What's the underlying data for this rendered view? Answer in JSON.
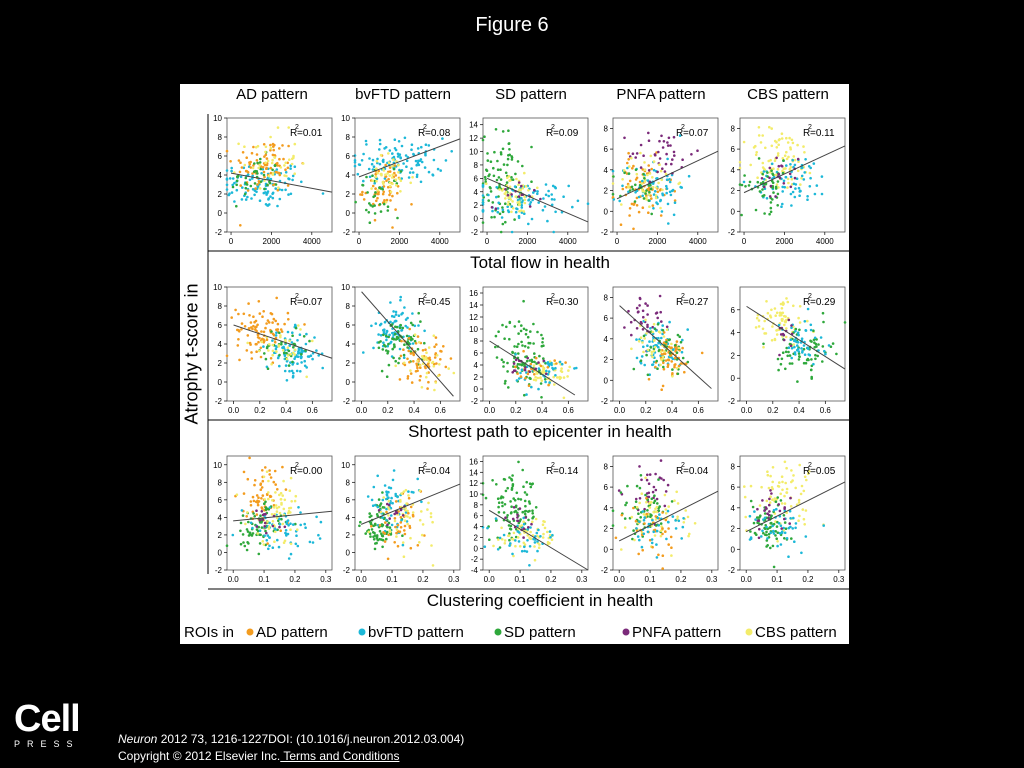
{
  "figure_title": "Figure 6",
  "y_axis_label": "Atrophy t-score in",
  "column_titles": [
    "AD pattern",
    "bvFTD pattern",
    "SD pattern",
    "PNFA pattern",
    "CBS pattern"
  ],
  "row_titles": [
    "Total flow in health",
    "Shortest path to epicenter in health",
    "Clustering coefficient in health"
  ],
  "legend": {
    "prefix": "ROIs in",
    "entries": [
      {
        "label": "AD pattern",
        "color": "#f39c1f"
      },
      {
        "label": "bvFTD pattern",
        "color": "#1cb8d8"
      },
      {
        "label": "SD pattern",
        "color": "#2ea83b"
      },
      {
        "label": "PNFA pattern",
        "color": "#7b2a7a"
      },
      {
        "label": "CBS pattern",
        "color": "#f3ec6a"
      }
    ]
  },
  "footer": {
    "logo_main": "Cell",
    "logo_sub": "PRESS",
    "journal": "Neuron",
    "citation_rest": " 2012 73, 1216-1227DOI: (10.1016/j.neuron.2012.03.004)",
    "copyright": "Copyright © 2012 Elsevier Inc.",
    "terms_link": " Terms and Conditions"
  },
  "chart_data": [
    {
      "type": "scatter",
      "row": 0,
      "col": 0,
      "annotation": "R²=0.01",
      "r2_prefix": "R",
      "r2_value": "=0.01",
      "xlim": [
        -200,
        5000
      ],
      "ylim": [
        -2,
        10
      ],
      "xticks": [
        0,
        2000,
        4000
      ],
      "yticks": [
        -2,
        0,
        2,
        4,
        6,
        8,
        10
      ],
      "fit": [
        [
          0,
          4.2
        ],
        [
          5000,
          2.2
        ]
      ],
      "clusters": [
        {
          "color": "#1cb8d8",
          "cx": 1500,
          "cy": 3,
          "sx": 1100,
          "sy": 1.3,
          "n": 110
        },
        {
          "color": "#f39c1f",
          "cx": 1700,
          "cy": 5,
          "sx": 800,
          "sy": 1.5,
          "n": 80
        },
        {
          "color": "#2ea83b",
          "cx": 1200,
          "cy": 3.5,
          "sx": 600,
          "sy": 1.2,
          "n": 35
        },
        {
          "color": "#f3ec6a",
          "cx": 1900,
          "cy": 5.5,
          "sx": 700,
          "sy": 1.5,
          "n": 40
        }
      ]
    },
    {
      "type": "scatter",
      "row": 0,
      "col": 1,
      "annotation": "R²=0.08",
      "r2_prefix": "R",
      "r2_value": "=0.08",
      "xlim": [
        -200,
        5000
      ],
      "ylim": [
        -2,
        10
      ],
      "xticks": [
        0,
        2000,
        4000
      ],
      "yticks": [
        -2,
        0,
        2,
        4,
        6,
        8,
        10
      ],
      "fit": [
        [
          0,
          3.8
        ],
        [
          5000,
          7.8
        ]
      ],
      "clusters": [
        {
          "color": "#1cb8d8",
          "cx": 2000,
          "cy": 5.5,
          "sx": 1100,
          "sy": 1.2,
          "n": 110
        },
        {
          "color": "#f39c1f",
          "cx": 1200,
          "cy": 2.5,
          "sx": 500,
          "sy": 1.4,
          "n": 60
        },
        {
          "color": "#2ea83b",
          "cx": 1000,
          "cy": 2,
          "sx": 500,
          "sy": 1.2,
          "n": 35
        },
        {
          "color": "#f3ec6a",
          "cx": 1500,
          "cy": 3.5,
          "sx": 600,
          "sy": 1.4,
          "n": 40
        }
      ]
    },
    {
      "type": "scatter",
      "row": 0,
      "col": 2,
      "annotation": "R²=0.09",
      "r2_prefix": "R",
      "r2_value": "=0.09",
      "xlim": [
        -200,
        5000
      ],
      "ylim": [
        -2,
        15
      ],
      "xticks": [
        0,
        2000,
        4000
      ],
      "yticks": [
        -2,
        0,
        2,
        4,
        6,
        8,
        10,
        12,
        14
      ],
      "fit": [
        [
          0,
          6
        ],
        [
          5000,
          -0.5
        ]
      ],
      "clusters": [
        {
          "color": "#2ea83b",
          "cx": 700,
          "cy": 6,
          "sx": 500,
          "sy": 3.5,
          "n": 90
        },
        {
          "color": "#1cb8d8",
          "cx": 1800,
          "cy": 2.5,
          "sx": 1100,
          "sy": 1.5,
          "n": 90
        },
        {
          "color": "#f3ec6a",
          "cx": 1400,
          "cy": 3.5,
          "sx": 600,
          "sy": 1.5,
          "n": 50
        },
        {
          "color": "#7b2a7a",
          "cx": 1500,
          "cy": 4,
          "sx": 600,
          "sy": 1.2,
          "n": 15
        }
      ]
    },
    {
      "type": "scatter",
      "row": 0,
      "col": 3,
      "annotation": "R²=0.07",
      "r2_prefix": "R",
      "r2_value": "=0.07",
      "xlim": [
        -200,
        5000
      ],
      "ylim": [
        -2,
        9
      ],
      "xticks": [
        0,
        2000,
        4000
      ],
      "yticks": [
        -2,
        0,
        2,
        4,
        6,
        8
      ],
      "fit": [
        [
          0,
          1.2
        ],
        [
          5000,
          5.8
        ]
      ],
      "clusters": [
        {
          "color": "#f39c1f",
          "cx": 1300,
          "cy": 2,
          "sx": 700,
          "sy": 1.5,
          "n": 70
        },
        {
          "color": "#1cb8d8",
          "cx": 1800,
          "cy": 2.5,
          "sx": 800,
          "sy": 1.4,
          "n": 70
        },
        {
          "color": "#7b2a7a",
          "cx": 2200,
          "cy": 5.5,
          "sx": 800,
          "sy": 1.2,
          "n": 40
        },
        {
          "color": "#f3ec6a",
          "cx": 1500,
          "cy": 3,
          "sx": 700,
          "sy": 1.5,
          "n": 45
        },
        {
          "color": "#2ea83b",
          "cx": 1000,
          "cy": 2,
          "sx": 500,
          "sy": 1.2,
          "n": 25
        }
      ]
    },
    {
      "type": "scatter",
      "row": 0,
      "col": 4,
      "annotation": "R²=0.11",
      "r2_prefix": "R",
      "r2_value": "=0.11",
      "xlim": [
        -200,
        5000
      ],
      "ylim": [
        -2,
        9
      ],
      "xticks": [
        0,
        2000,
        4000
      ],
      "yticks": [
        -2,
        0,
        2,
        4,
        6,
        8
      ],
      "fit": [
        [
          0,
          1.8
        ],
        [
          5000,
          6.3
        ]
      ],
      "clusters": [
        {
          "color": "#f3ec6a",
          "cx": 1800,
          "cy": 5,
          "sx": 900,
          "sy": 1.5,
          "n": 90
        },
        {
          "color": "#1cb8d8",
          "cx": 2400,
          "cy": 3,
          "sx": 900,
          "sy": 1.2,
          "n": 70
        },
        {
          "color": "#2ea83b",
          "cx": 1100,
          "cy": 2.5,
          "sx": 600,
          "sy": 1.2,
          "n": 50
        },
        {
          "color": "#7b2a7a",
          "cx": 1700,
          "cy": 3.5,
          "sx": 500,
          "sy": 1,
          "n": 20
        }
      ]
    },
    {
      "type": "scatter",
      "row": 1,
      "col": 0,
      "annotation": "R²=0.07",
      "r2_prefix": "R",
      "r2_value": "=0.07",
      "xlim": [
        -0.05,
        0.75
      ],
      "ylim": [
        -2,
        10
      ],
      "xticks": [
        0.0,
        0.2,
        0.4,
        0.6
      ],
      "yticks": [
        -2,
        0,
        2,
        4,
        6,
        8,
        10
      ],
      "fit": [
        [
          0,
          6
        ],
        [
          0.75,
          2.5
        ]
      ],
      "clusters": [
        {
          "color": "#f39c1f",
          "cx": 0.22,
          "cy": 5.5,
          "sx": 0.1,
          "sy": 1.3,
          "n": 90
        },
        {
          "color": "#1cb8d8",
          "cx": 0.45,
          "cy": 3,
          "sx": 0.1,
          "sy": 1.2,
          "n": 90
        },
        {
          "color": "#2ea83b",
          "cx": 0.4,
          "cy": 3.5,
          "sx": 0.1,
          "sy": 1.2,
          "n": 35
        },
        {
          "color": "#f3ec6a",
          "cx": 0.35,
          "cy": 4,
          "sx": 0.1,
          "sy": 1.2,
          "n": 30
        }
      ]
    },
    {
      "type": "scatter",
      "row": 1,
      "col": 1,
      "annotation": "R²=0.45",
      "r2_prefix": "R",
      "r2_value": "=0.45",
      "xlim": [
        -0.05,
        0.75
      ],
      "ylim": [
        -2,
        10
      ],
      "xticks": [
        0.0,
        0.2,
        0.4,
        0.6
      ],
      "yticks": [
        -2,
        0,
        2,
        4,
        6,
        8,
        10
      ],
      "fit": [
        [
          0,
          9.5
        ],
        [
          0.7,
          -1.5
        ]
      ],
      "clusters": [
        {
          "color": "#1cb8d8",
          "cx": 0.25,
          "cy": 5.5,
          "sx": 0.08,
          "sy": 1.3,
          "n": 80
        },
        {
          "color": "#2ea83b",
          "cx": 0.3,
          "cy": 4,
          "sx": 0.09,
          "sy": 1.3,
          "n": 70
        },
        {
          "color": "#f39c1f",
          "cx": 0.45,
          "cy": 2.5,
          "sx": 0.09,
          "sy": 1.3,
          "n": 70
        },
        {
          "color": "#f3ec6a",
          "cx": 0.5,
          "cy": 2,
          "sx": 0.08,
          "sy": 1.2,
          "n": 30
        }
      ]
    },
    {
      "type": "scatter",
      "row": 1,
      "col": 2,
      "annotation": "R²=0.30",
      "r2_prefix": "R",
      "r2_value": "=0.30",
      "xlim": [
        -0.05,
        0.75
      ],
      "ylim": [
        -2,
        17
      ],
      "xticks": [
        0.0,
        0.2,
        0.4,
        0.6
      ],
      "yticks": [
        -2,
        0,
        2,
        4,
        6,
        8,
        10,
        12,
        14,
        16
      ],
      "fit": [
        [
          0,
          8
        ],
        [
          0.65,
          -1
        ]
      ],
      "clusters": [
        {
          "color": "#2ea83b",
          "cx": 0.25,
          "cy": 6,
          "sx": 0.1,
          "sy": 3,
          "n": 100
        },
        {
          "color": "#f3ec6a",
          "cx": 0.45,
          "cy": 2.5,
          "sx": 0.09,
          "sy": 1.5,
          "n": 50
        },
        {
          "color": "#1cb8d8",
          "cx": 0.4,
          "cy": 3,
          "sx": 0.1,
          "sy": 1.5,
          "n": 40
        },
        {
          "color": "#f39c1f",
          "cx": 0.35,
          "cy": 3,
          "sx": 0.08,
          "sy": 1.2,
          "n": 20
        },
        {
          "color": "#7b2a7a",
          "cx": 0.3,
          "cy": 4,
          "sx": 0.08,
          "sy": 1.2,
          "n": 15
        }
      ]
    },
    {
      "type": "scatter",
      "row": 1,
      "col": 3,
      "annotation": "R²=0.27",
      "r2_prefix": "R",
      "r2_value": "=0.27",
      "xlim": [
        -0.05,
        0.75
      ],
      "ylim": [
        -2,
        9
      ],
      "xticks": [
        0.0,
        0.2,
        0.4,
        0.6
      ],
      "yticks": [
        -2,
        0,
        2,
        4,
        6,
        8
      ],
      "fit": [
        [
          0,
          7.2
        ],
        [
          0.7,
          -0.8
        ]
      ],
      "clusters": [
        {
          "color": "#7b2a7a",
          "cx": 0.2,
          "cy": 6,
          "sx": 0.07,
          "sy": 1.1,
          "n": 35
        },
        {
          "color": "#1cb8d8",
          "cx": 0.3,
          "cy": 3.5,
          "sx": 0.09,
          "sy": 1.2,
          "n": 70
        },
        {
          "color": "#f39c1f",
          "cx": 0.38,
          "cy": 2,
          "sx": 0.09,
          "sy": 1.1,
          "n": 60
        },
        {
          "color": "#2ea83b",
          "cx": 0.35,
          "cy": 3,
          "sx": 0.09,
          "sy": 1.1,
          "n": 40
        },
        {
          "color": "#f3ec6a",
          "cx": 0.3,
          "cy": 3.5,
          "sx": 0.09,
          "sy": 1.2,
          "n": 35
        }
      ]
    },
    {
      "type": "scatter",
      "row": 1,
      "col": 4,
      "annotation": "R²=0.29",
      "r2_prefix": "R",
      "r2_value": "=0.29",
      "xlim": [
        -0.05,
        0.75
      ],
      "ylim": [
        -2,
        8
      ],
      "xticks": [
        0.0,
        0.2,
        0.4,
        0.6
      ],
      "yticks": [
        -2,
        0,
        2,
        4,
        6
      ],
      "fit": [
        [
          0,
          6.3
        ],
        [
          0.75,
          0.8
        ]
      ],
      "clusters": [
        {
          "color": "#f3ec6a",
          "cx": 0.25,
          "cy": 5,
          "sx": 0.1,
          "sy": 1.1,
          "n": 70
        },
        {
          "color": "#2ea83b",
          "cx": 0.45,
          "cy": 2.5,
          "sx": 0.1,
          "sy": 1.1,
          "n": 70
        },
        {
          "color": "#1cb8d8",
          "cx": 0.4,
          "cy": 3,
          "sx": 0.1,
          "sy": 1.1,
          "n": 50
        },
        {
          "color": "#7b2a7a",
          "cx": 0.3,
          "cy": 3.5,
          "sx": 0.07,
          "sy": 0.8,
          "n": 12
        }
      ]
    },
    {
      "type": "scatter",
      "row": 2,
      "col": 0,
      "annotation": "R²=0.00",
      "r2_prefix": "R",
      "r2_value": "=0.00",
      "xlim": [
        -0.02,
        0.32
      ],
      "ylim": [
        -2,
        11
      ],
      "xticks": [
        0.0,
        0.1,
        0.2,
        0.3
      ],
      "yticks": [
        -2,
        0,
        2,
        4,
        6,
        8,
        10
      ],
      "fit": [
        [
          0,
          3.6
        ],
        [
          0.32,
          4.7
        ]
      ],
      "clusters": [
        {
          "color": "#f39c1f",
          "cx": 0.1,
          "cy": 6,
          "sx": 0.03,
          "sy": 2,
          "n": 70
        },
        {
          "color": "#2ea83b",
          "cx": 0.08,
          "cy": 3,
          "sx": 0.04,
          "sy": 1.3,
          "n": 70
        },
        {
          "color": "#1cb8d8",
          "cx": 0.15,
          "cy": 2.5,
          "sx": 0.06,
          "sy": 1.3,
          "n": 60
        },
        {
          "color": "#f3ec6a",
          "cx": 0.15,
          "cy": 5,
          "sx": 0.05,
          "sy": 2,
          "n": 60
        },
        {
          "color": "#7b2a7a",
          "cx": 0.1,
          "cy": 3.5,
          "sx": 0.03,
          "sy": 1,
          "n": 15
        }
      ]
    },
    {
      "type": "scatter",
      "row": 2,
      "col": 1,
      "annotation": "R²=0.04",
      "r2_prefix": "R",
      "r2_value": "=0.04",
      "xlim": [
        -0.02,
        0.32
      ],
      "ylim": [
        -2,
        11
      ],
      "xticks": [
        0.0,
        0.1,
        0.2,
        0.3
      ],
      "yticks": [
        -2,
        0,
        2,
        4,
        6,
        8,
        10
      ],
      "fit": [
        [
          0,
          3.2
        ],
        [
          0.32,
          7.8
        ]
      ],
      "clusters": [
        {
          "color": "#2ea83b",
          "cx": 0.06,
          "cy": 3,
          "sx": 0.03,
          "sy": 1.5,
          "n": 80
        },
        {
          "color": "#1cb8d8",
          "cx": 0.1,
          "cy": 5.5,
          "sx": 0.04,
          "sy": 1.5,
          "n": 60
        },
        {
          "color": "#f39c1f",
          "cx": 0.12,
          "cy": 3,
          "sx": 0.04,
          "sy": 1.4,
          "n": 40
        },
        {
          "color": "#f3ec6a",
          "cx": 0.15,
          "cy": 4,
          "sx": 0.05,
          "sy": 1.6,
          "n": 50
        },
        {
          "color": "#7b2a7a",
          "cx": 0.1,
          "cy": 5,
          "sx": 0.03,
          "sy": 1,
          "n": 12
        }
      ]
    },
    {
      "type": "scatter",
      "row": 2,
      "col": 2,
      "annotation": "R²=0.14",
      "r2_prefix": "R",
      "r2_value": "=0.14",
      "xlim": [
        -0.02,
        0.32
      ],
      "ylim": [
        -4,
        17
      ],
      "xticks": [
        0.0,
        0.1,
        0.2,
        0.3
      ],
      "yticks": [
        -4,
        -2,
        0,
        2,
        4,
        6,
        8,
        10,
        12,
        14,
        16
      ],
      "fit": [
        [
          0,
          7
        ],
        [
          0.32,
          -4
        ]
      ],
      "clusters": [
        {
          "color": "#2ea83b",
          "cx": 0.08,
          "cy": 7,
          "sx": 0.04,
          "sy": 3,
          "n": 100
        },
        {
          "color": "#f3ec6a",
          "cx": 0.13,
          "cy": 2,
          "sx": 0.05,
          "sy": 1.6,
          "n": 60
        },
        {
          "color": "#1cb8d8",
          "cx": 0.12,
          "cy": 2,
          "sx": 0.05,
          "sy": 1.5,
          "n": 40
        },
        {
          "color": "#7b2a7a",
          "cx": 0.1,
          "cy": 5,
          "sx": 0.03,
          "sy": 1.5,
          "n": 15
        }
      ]
    },
    {
      "type": "scatter",
      "row": 2,
      "col": 3,
      "annotation": "R²=0.04",
      "r2_prefix": "R",
      "r2_value": "=0.04",
      "xlim": [
        -0.02,
        0.32
      ],
      "ylim": [
        -2,
        9
      ],
      "xticks": [
        0.0,
        0.1,
        0.2,
        0.3
      ],
      "yticks": [
        -2,
        0,
        2,
        4,
        6,
        8
      ],
      "fit": [
        [
          0,
          0.8
        ],
        [
          0.32,
          5.6
        ]
      ],
      "clusters": [
        {
          "color": "#7b2a7a",
          "cx": 0.1,
          "cy": 5.5,
          "sx": 0.04,
          "sy": 1.2,
          "n": 35
        },
        {
          "color": "#2ea83b",
          "cx": 0.08,
          "cy": 3.5,
          "sx": 0.04,
          "sy": 1.3,
          "n": 60
        },
        {
          "color": "#f3ec6a",
          "cx": 0.13,
          "cy": 3,
          "sx": 0.05,
          "sy": 1.3,
          "n": 55
        },
        {
          "color": "#f39c1f",
          "cx": 0.1,
          "cy": 2,
          "sx": 0.04,
          "sy": 1.1,
          "n": 40
        },
        {
          "color": "#1cb8d8",
          "cx": 0.12,
          "cy": 2,
          "sx": 0.05,
          "sy": 1.2,
          "n": 35
        }
      ]
    },
    {
      "type": "scatter",
      "row": 2,
      "col": 4,
      "annotation": "R²=0.05",
      "r2_prefix": "R",
      "r2_value": "=0.05",
      "xlim": [
        -0.02,
        0.32
      ],
      "ylim": [
        -2,
        9
      ],
      "xticks": [
        0.0,
        0.1,
        0.2,
        0.3
      ],
      "yticks": [
        -2,
        0,
        2,
        4,
        6,
        8
      ],
      "fit": [
        [
          0,
          1.7
        ],
        [
          0.32,
          6.5
        ]
      ],
      "clusters": [
        {
          "color": "#f3ec6a",
          "cx": 0.12,
          "cy": 5.5,
          "sx": 0.05,
          "sy": 1.5,
          "n": 70
        },
        {
          "color": "#2ea83b",
          "cx": 0.07,
          "cy": 2.5,
          "sx": 0.03,
          "sy": 1.3,
          "n": 70
        },
        {
          "color": "#1cb8d8",
          "cx": 0.12,
          "cy": 2,
          "sx": 0.05,
          "sy": 1.2,
          "n": 45
        },
        {
          "color": "#7b2a7a",
          "cx": 0.08,
          "cy": 3.5,
          "sx": 0.03,
          "sy": 0.9,
          "n": 25
        }
      ]
    }
  ]
}
